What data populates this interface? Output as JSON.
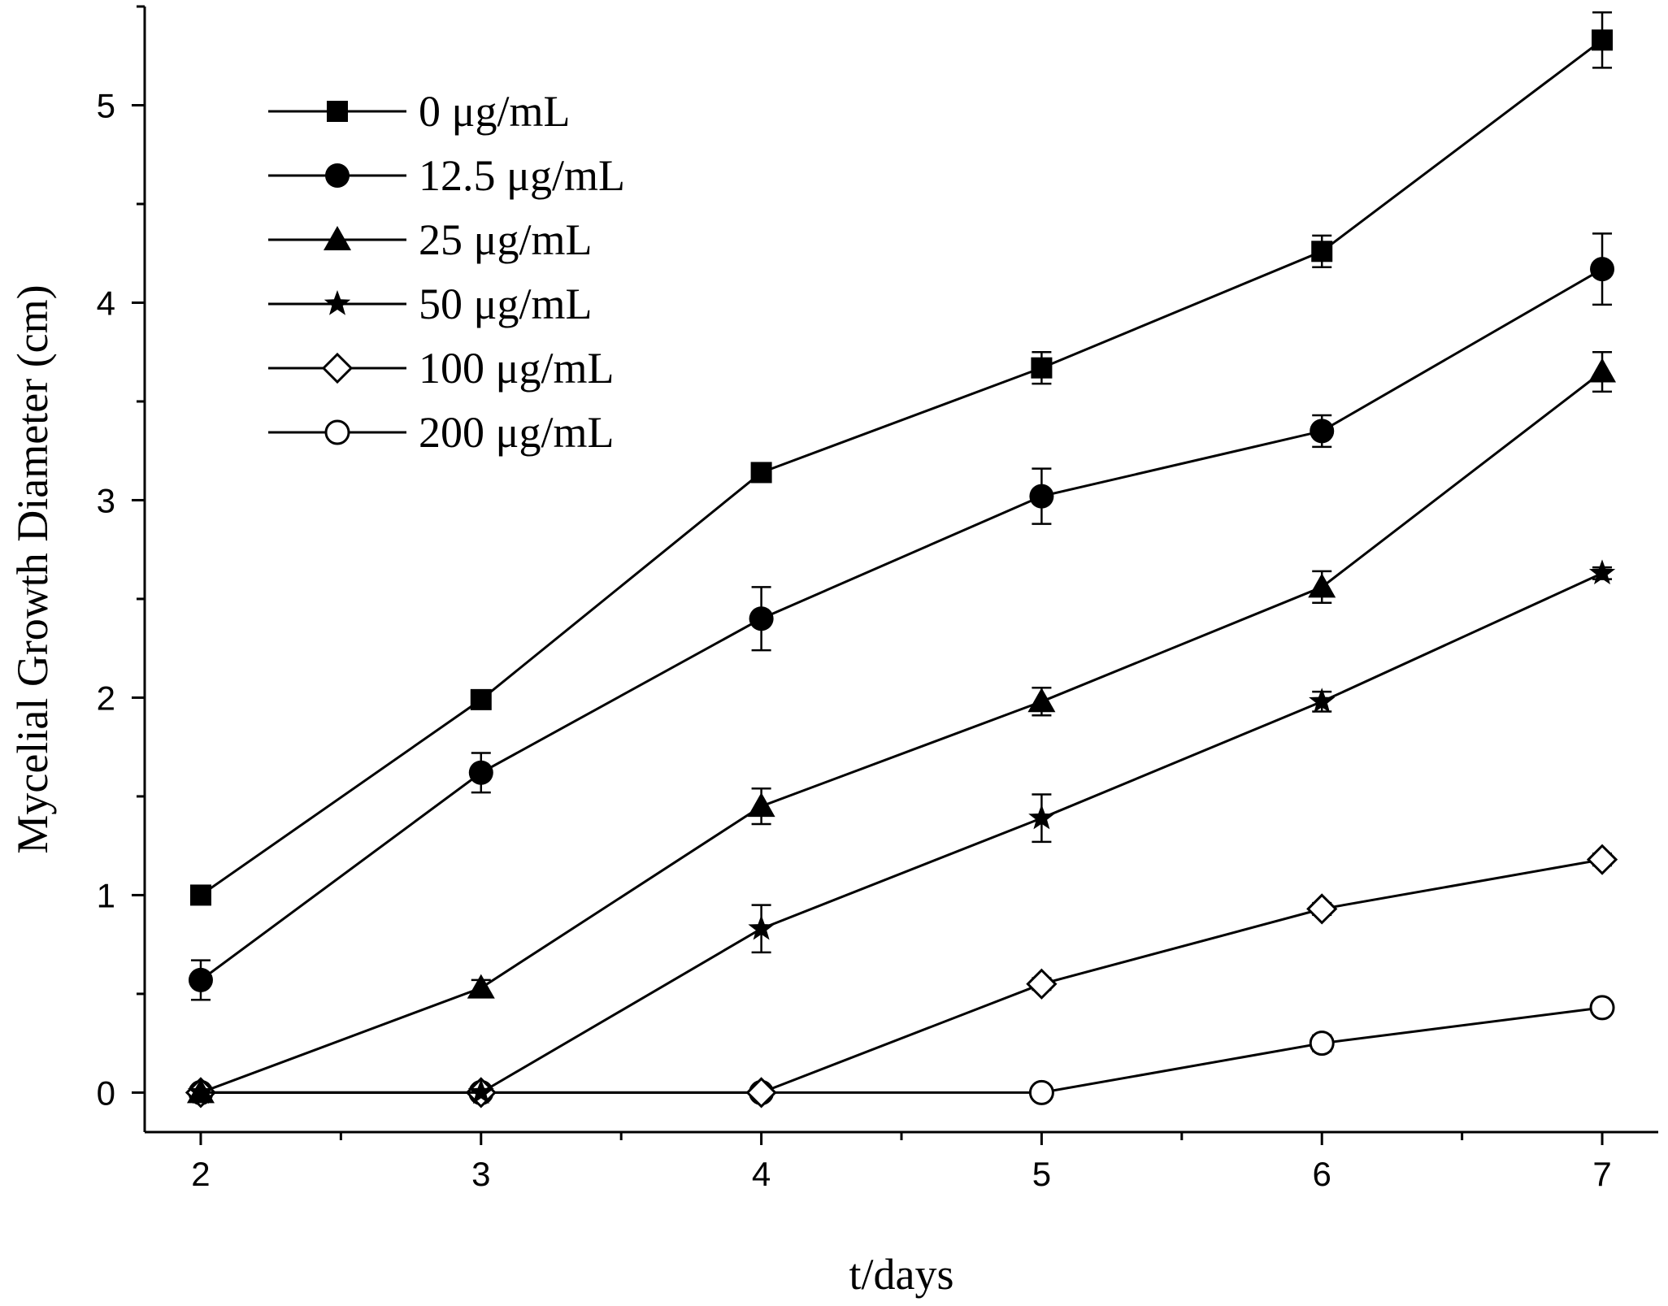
{
  "chart_data": {
    "type": "line",
    "title": "",
    "xlabel": "t/days",
    "ylabel": "Mycelial Growth Diameter (cm)",
    "xlim": [
      1.8,
      7.2
    ],
    "ylim": [
      -0.2,
      5.5
    ],
    "x_ticks": [
      2,
      3,
      4,
      5,
      6,
      7
    ],
    "y_ticks": [
      0,
      1,
      2,
      3,
      4,
      5
    ],
    "x": [
      2,
      3,
      4,
      5,
      6,
      7
    ],
    "grid": false,
    "legend_position": "top-left",
    "series": [
      {
        "name": "0 μg/mL",
        "marker": "square-filled",
        "values": [
          1.0,
          1.99,
          3.14,
          3.67,
          4.26,
          5.33
        ],
        "errors": [
          0.03,
          0.03,
          0.03,
          0.08,
          0.08,
          0.14
        ]
      },
      {
        "name": "12.5 μg/mL",
        "marker": "circle-filled",
        "values": [
          0.57,
          1.62,
          2.4,
          3.02,
          3.35,
          4.17
        ],
        "errors": [
          0.1,
          0.1,
          0.16,
          0.14,
          0.08,
          0.18
        ]
      },
      {
        "name": "25 μg/mL",
        "marker": "triangle-filled",
        "values": [
          0.0,
          0.53,
          1.45,
          1.98,
          2.56,
          3.65
        ],
        "errors": [
          0.0,
          0.04,
          0.09,
          0.07,
          0.08,
          0.1
        ]
      },
      {
        "name": "50 μg/mL",
        "marker": "star-filled",
        "values": [
          0.0,
          0.0,
          0.83,
          1.39,
          1.98,
          2.63
        ],
        "errors": [
          0.0,
          0.0,
          0.12,
          0.12,
          0.05,
          0.03
        ]
      },
      {
        "name": "100 μg/mL",
        "marker": "diamond-open",
        "values": [
          0.0,
          0.0,
          0.0,
          0.55,
          0.93,
          1.18
        ],
        "errors": [
          0.0,
          0.0,
          0.0,
          0.03,
          0.03,
          0.03
        ]
      },
      {
        "name": "200 μg/mL",
        "marker": "circle-open",
        "values": [
          0.0,
          0.0,
          0.0,
          0.0,
          0.25,
          0.43
        ],
        "errors": [
          0.0,
          0.0,
          0.0,
          0.0,
          0.04,
          0.03
        ]
      }
    ]
  }
}
